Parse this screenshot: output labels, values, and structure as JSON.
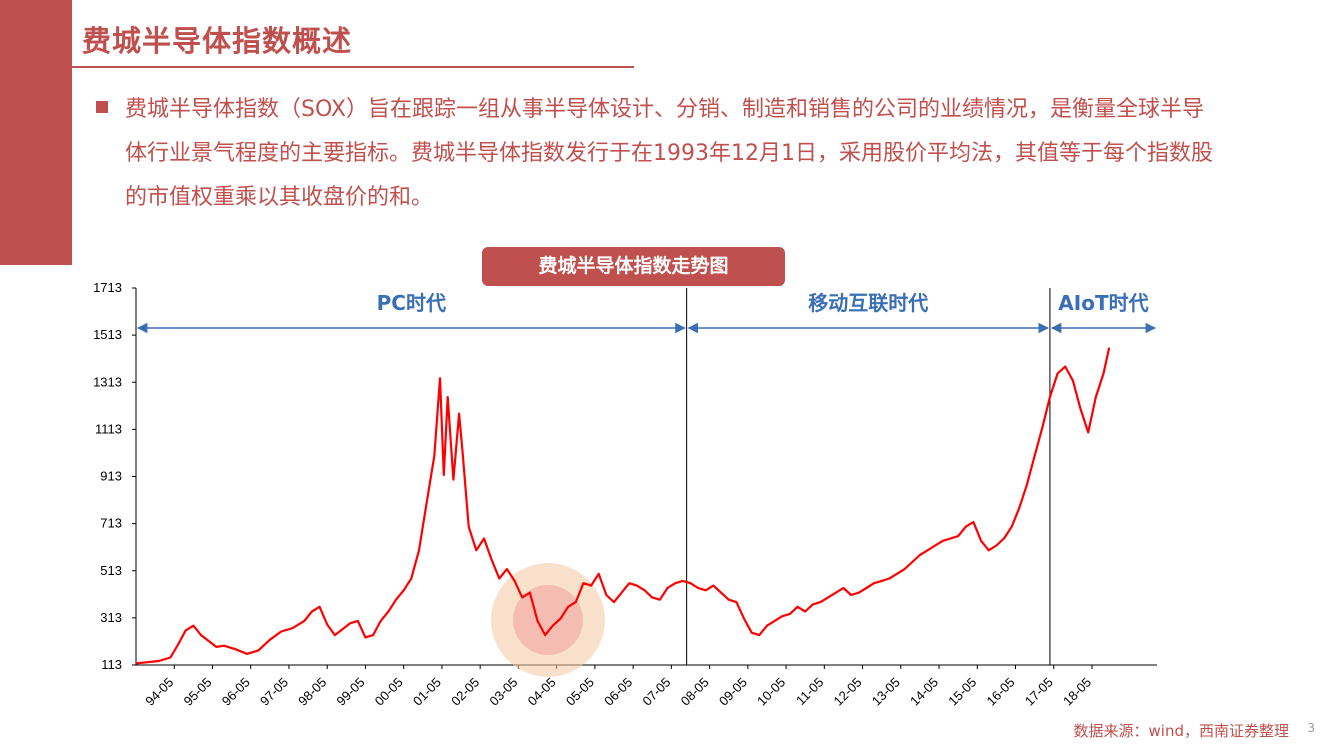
{
  "header": {
    "title": "费城半导体指数概述"
  },
  "intro": {
    "text": "费城半导体指数（SOX）旨在跟踪一组从事半导体设计、分销、制造和销售的公司的业绩情况，是衡量全球半导体行业景气程度的主要指标。费城半导体指数发行于在1993年12月1日，采用股价平均法，其值等于每个指数股的市值权重乘以其收盘价的和。"
  },
  "chart_box": {
    "title": "费城半导体指数走势图"
  },
  "footer": {
    "source": "数据来源：wind，西南证券整理",
    "page": "3"
  },
  "colors": {
    "accent": "#c0504d",
    "series": "#ff0000",
    "era_arrow": "#3a6fb5"
  },
  "chart_data": {
    "type": "line",
    "title": "费城半导体指数走势图",
    "y_ticks": [
      113,
      313,
      513,
      713,
      913,
      1113,
      1313,
      1513,
      1713
    ],
    "ylim": [
      113,
      1713
    ],
    "x_ticks": [
      "94-05",
      "95-05",
      "96-05",
      "97-05",
      "98-05",
      "99-05",
      "00-05",
      "01-05",
      "02-05",
      "03-05",
      "04-05",
      "05-05",
      "06-05",
      "07-05",
      "08-05",
      "09-05",
      "10-05",
      "11-05",
      "12-05",
      "13-05",
      "14-05",
      "15-05",
      "16-05",
      "17-05",
      "18-05"
    ],
    "grid": false,
    "eras": [
      {
        "label": "PC时代",
        "start": 0.0,
        "end": 14.4
      },
      {
        "label": "移动互联时代",
        "start": 14.4,
        "end": 23.9
      },
      {
        "label": "AIoT时代",
        "start": 23.9,
        "end": 26.7
      }
    ],
    "series": [
      {
        "points": [
          [
            0.0,
            120
          ],
          [
            0.3,
            125
          ],
          [
            0.6,
            130
          ],
          [
            0.9,
            145
          ],
          [
            1.1,
            200
          ],
          [
            1.3,
            260
          ],
          [
            1.5,
            280
          ],
          [
            1.7,
            240
          ],
          [
            1.9,
            215
          ],
          [
            2.1,
            190
          ],
          [
            2.3,
            195
          ],
          [
            2.6,
            180
          ],
          [
            2.9,
            160
          ],
          [
            3.2,
            175
          ],
          [
            3.5,
            220
          ],
          [
            3.8,
            255
          ],
          [
            4.1,
            270
          ],
          [
            4.4,
            300
          ],
          [
            4.6,
            340
          ],
          [
            4.8,
            360
          ],
          [
            5.0,
            285
          ],
          [
            5.2,
            240
          ],
          [
            5.4,
            265
          ],
          [
            5.6,
            290
          ],
          [
            5.8,
            300
          ],
          [
            6.0,
            230
          ],
          [
            6.2,
            240
          ],
          [
            6.4,
            300
          ],
          [
            6.6,
            340
          ],
          [
            6.8,
            390
          ],
          [
            7.0,
            430
          ],
          [
            7.2,
            480
          ],
          [
            7.4,
            600
          ],
          [
            7.6,
            800
          ],
          [
            7.8,
            1000
          ],
          [
            7.95,
            1330
          ],
          [
            8.05,
            920
          ],
          [
            8.15,
            1250
          ],
          [
            8.3,
            900
          ],
          [
            8.45,
            1180
          ],
          [
            8.55,
            1000
          ],
          [
            8.7,
            700
          ],
          [
            8.9,
            600
          ],
          [
            9.1,
            650
          ],
          [
            9.3,
            560
          ],
          [
            9.5,
            480
          ],
          [
            9.7,
            520
          ],
          [
            9.9,
            470
          ],
          [
            10.1,
            400
          ],
          [
            10.3,
            420
          ],
          [
            10.5,
            300
          ],
          [
            10.7,
            240
          ],
          [
            10.9,
            280
          ],
          [
            11.1,
            310
          ],
          [
            11.3,
            360
          ],
          [
            11.5,
            380
          ],
          [
            11.7,
            460
          ],
          [
            11.9,
            450
          ],
          [
            12.1,
            500
          ],
          [
            12.3,
            410
          ],
          [
            12.5,
            380
          ],
          [
            12.7,
            420
          ],
          [
            12.9,
            460
          ],
          [
            13.1,
            450
          ],
          [
            13.3,
            430
          ],
          [
            13.5,
            400
          ],
          [
            13.7,
            390
          ],
          [
            13.9,
            440
          ],
          [
            14.1,
            460
          ],
          [
            14.3,
            470
          ],
          [
            14.5,
            460
          ],
          [
            14.7,
            440
          ],
          [
            14.9,
            430
          ],
          [
            15.1,
            450
          ],
          [
            15.3,
            420
          ],
          [
            15.5,
            390
          ],
          [
            15.7,
            380
          ],
          [
            15.9,
            310
          ],
          [
            16.1,
            250
          ],
          [
            16.3,
            240
          ],
          [
            16.5,
            280
          ],
          [
            16.7,
            300
          ],
          [
            16.9,
            320
          ],
          [
            17.1,
            330
          ],
          [
            17.3,
            360
          ],
          [
            17.5,
            340
          ],
          [
            17.7,
            370
          ],
          [
            17.9,
            380
          ],
          [
            18.1,
            400
          ],
          [
            18.3,
            420
          ],
          [
            18.5,
            440
          ],
          [
            18.7,
            410
          ],
          [
            18.9,
            420
          ],
          [
            19.1,
            440
          ],
          [
            19.3,
            460
          ],
          [
            19.5,
            470
          ],
          [
            19.7,
            480
          ],
          [
            19.9,
            500
          ],
          [
            20.1,
            520
          ],
          [
            20.3,
            550
          ],
          [
            20.5,
            580
          ],
          [
            20.7,
            600
          ],
          [
            20.9,
            620
          ],
          [
            21.1,
            640
          ],
          [
            21.3,
            650
          ],
          [
            21.5,
            660
          ],
          [
            21.7,
            700
          ],
          [
            21.9,
            720
          ],
          [
            22.1,
            640
          ],
          [
            22.3,
            600
          ],
          [
            22.5,
            620
          ],
          [
            22.7,
            650
          ],
          [
            22.9,
            700
          ],
          [
            23.1,
            780
          ],
          [
            23.3,
            880
          ],
          [
            23.5,
            1000
          ],
          [
            23.7,
            1120
          ],
          [
            23.9,
            1250
          ],
          [
            24.1,
            1350
          ],
          [
            24.3,
            1380
          ],
          [
            24.5,
            1320
          ],
          [
            24.7,
            1200
          ],
          [
            24.9,
            1100
          ],
          [
            25.1,
            1250
          ],
          [
            25.3,
            1350
          ],
          [
            25.45,
            1460
          ]
        ]
      }
    ]
  }
}
